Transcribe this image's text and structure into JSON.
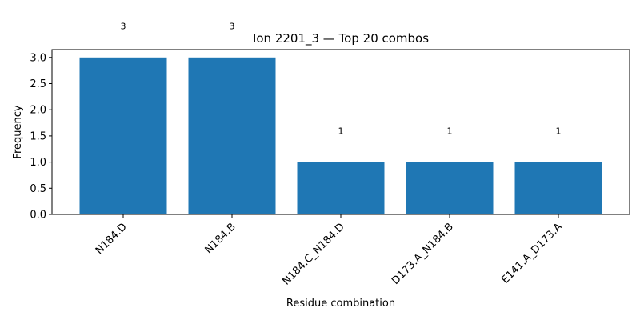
{
  "chart_data": {
    "type": "bar",
    "title": "Ion 2201_3 — Top 20 combos",
    "xlabel": "Residue combination",
    "ylabel": "Frequency",
    "categories": [
      "N184.D",
      "N184.B",
      "N184.C_N184.D",
      "D173.A_N184.B",
      "E141.A_D173.A"
    ],
    "values": [
      3,
      3,
      1,
      1,
      1
    ],
    "data_labels": [
      "3",
      "3",
      "1",
      "1",
      "1"
    ],
    "ylim": [
      0,
      3.15
    ],
    "yticks": [
      "0.0",
      "0.5",
      "1.0",
      "1.5",
      "2.0",
      "2.5",
      "3.0"
    ],
    "grid": false,
    "bar_color": "#1f77b4"
  }
}
